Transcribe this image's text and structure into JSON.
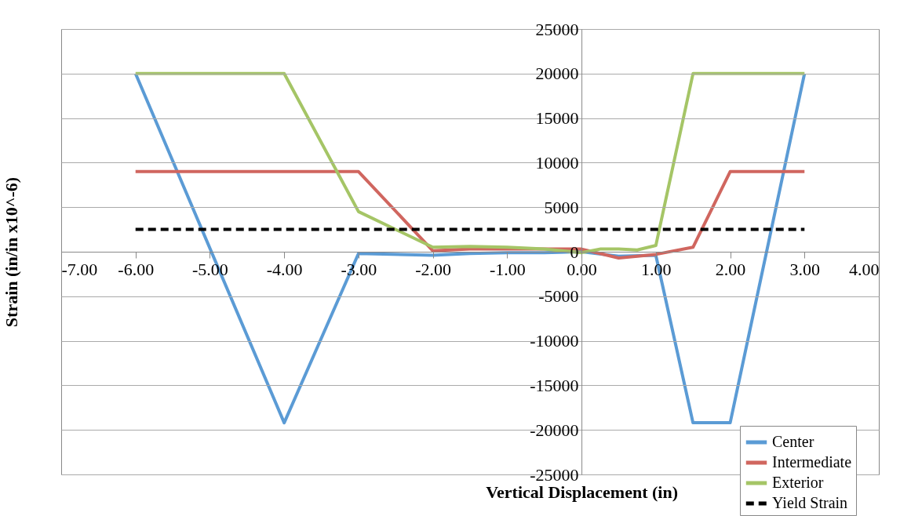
{
  "chart_data": {
    "type": "line",
    "xlabel": "Vertical Displacement (in)",
    "ylabel": "Strain (in/in x10^-6)",
    "xlim": [
      -7,
      4
    ],
    "xticks": [
      {
        "value": -7,
        "label": "-7.00"
      },
      {
        "value": -6,
        "label": "-6.00"
      },
      {
        "value": -5,
        "label": "-5.00"
      },
      {
        "value": -4,
        "label": "-4.00"
      },
      {
        "value": -3,
        "label": "-3.00"
      },
      {
        "value": -2,
        "label": "-2.00"
      },
      {
        "value": -1,
        "label": "-1.00"
      },
      {
        "value": 0,
        "label": "0.00"
      },
      {
        "value": 1,
        "label": "1.00"
      },
      {
        "value": 2,
        "label": "2.00"
      },
      {
        "value": 3,
        "label": "3.00"
      },
      {
        "value": 4,
        "label": "4.00"
      }
    ],
    "ylim": [
      -25000,
      25000
    ],
    "yticks": [
      -25000,
      -20000,
      -15000,
      -10000,
      -5000,
      0,
      5000,
      10000,
      15000,
      20000,
      25000
    ],
    "grid": "y",
    "legend": "bottom right",
    "series": [
      {
        "name": "Center",
        "color": "#5b9bd5",
        "x": [
          -6,
          -4,
          -3,
          -2,
          -1.5,
          -1,
          -0.5,
          0,
          0.5,
          1,
          1.5,
          2,
          3
        ],
        "values": [
          20000,
          -19200,
          -200,
          -400,
          -200,
          -100,
          -100,
          0,
          -500,
          -400,
          -19200,
          -19200,
          20000
        ]
      },
      {
        "name": "Intermediate",
        "color": "#d0665f",
        "x": [
          -6,
          -4,
          -3,
          -2,
          -1.5,
          -1,
          -0.5,
          0,
          0.5,
          0.75,
          1,
          1.5,
          2,
          3
        ],
        "values": [
          9000,
          9000,
          9000,
          100,
          300,
          300,
          300,
          300,
          -700,
          -500,
          -300,
          500,
          9000,
          9000
        ]
      },
      {
        "name": "Exterior",
        "color": "#a5c566",
        "x": [
          -6,
          -4,
          -3,
          -2,
          -1.5,
          -1,
          -0.5,
          0,
          0.25,
          0.5,
          0.75,
          1,
          1.5,
          2,
          3
        ],
        "values": [
          20000,
          20000,
          4500,
          500,
          600,
          500,
          300,
          -100,
          300,
          300,
          200,
          700,
          20000,
          20000,
          20000
        ]
      },
      {
        "name": "Yield Strain",
        "color": "#000000",
        "line_style": "dashed",
        "x": [
          -6,
          3
        ],
        "values": [
          2500,
          2500
        ]
      }
    ]
  }
}
